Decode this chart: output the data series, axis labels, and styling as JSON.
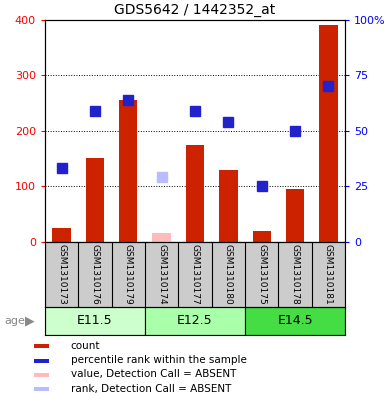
{
  "title": "GDS5642 / 1442352_at",
  "samples": [
    "GSM1310173",
    "GSM1310176",
    "GSM1310179",
    "GSM1310174",
    "GSM1310177",
    "GSM1310180",
    "GSM1310175",
    "GSM1310178",
    "GSM1310181"
  ],
  "age_groups": [
    {
      "label": "E11.5",
      "start": 0,
      "end": 3,
      "color": "#ccffcc"
    },
    {
      "label": "E12.5",
      "start": 3,
      "end": 6,
      "color": "#aaffaa"
    },
    {
      "label": "E14.5",
      "start": 6,
      "end": 9,
      "color": "#55ee55"
    }
  ],
  "count_values": [
    25,
    150,
    255,
    null,
    175,
    130,
    20,
    95,
    390
  ],
  "rank_values": [
    33,
    59,
    64,
    null,
    59,
    54,
    25,
    50,
    70
  ],
  "absent_count": [
    null,
    null,
    null,
    15,
    null,
    null,
    null,
    null,
    null
  ],
  "absent_rank": [
    null,
    null,
    null,
    29,
    null,
    null,
    null,
    null,
    null
  ],
  "ylim_left": [
    0,
    400
  ],
  "ylim_right": [
    0,
    100
  ],
  "yticks_left": [
    0,
    100,
    200,
    300,
    400
  ],
  "yticks_right": [
    0,
    25,
    50,
    75,
    100
  ],
  "ytick_labels_right": [
    "0",
    "25",
    "50",
    "75",
    "100%"
  ],
  "bar_color": "#cc2200",
  "rank_color": "#2222cc",
  "absent_bar_color": "#ffbbbb",
  "absent_rank_color": "#bbbbff",
  "bg_plot": "#ffffff",
  "bg_sample_row": "#cccccc",
  "bg_age_row_light": "#ccffcc",
  "bg_age_row_mid": "#aaffaa",
  "bg_age_row_dark": "#44dd44",
  "legend_items": [
    {
      "color": "#cc2200",
      "label": "count"
    },
    {
      "color": "#2222cc",
      "label": "percentile rank within the sample"
    },
    {
      "color": "#ffbbbb",
      "label": "value, Detection Call = ABSENT"
    },
    {
      "color": "#bbbbff",
      "label": "rank, Detection Call = ABSENT"
    }
  ],
  "bar_width": 0.55,
  "marker_size": 7
}
